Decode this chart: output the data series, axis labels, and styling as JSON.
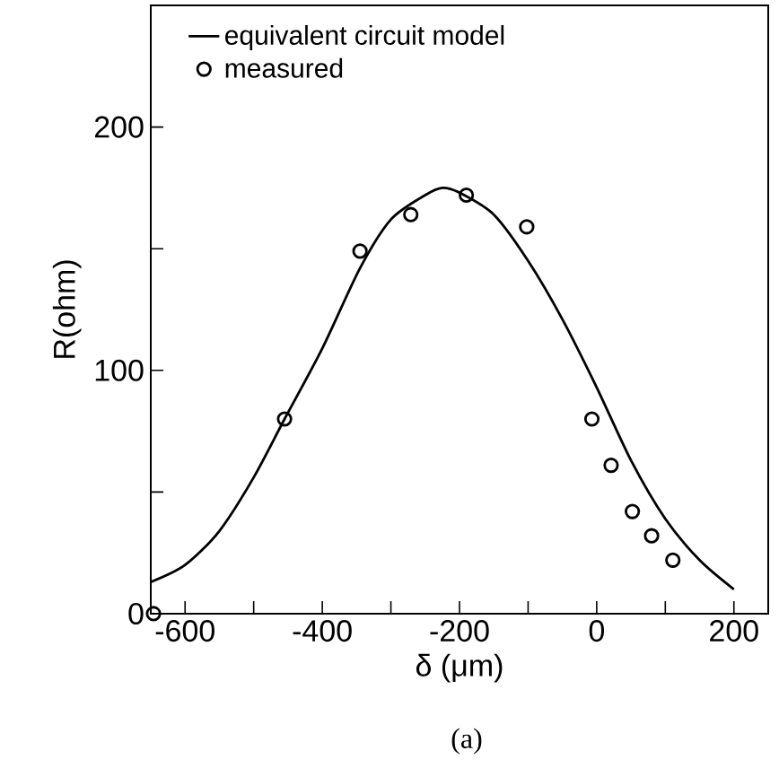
{
  "chart_data": {
    "type": "line",
    "xlabel": "δ (μm)",
    "ylabel": "R(ohm)",
    "xlim": [
      -650,
      250
    ],
    "ylim": [
      0,
      250
    ],
    "xticks": [
      -600,
      {
        "value": -500,
        "label": null
      },
      -400,
      {
        "value": -300,
        "label": null
      },
      -200,
      {
        "value": -100,
        "label": null
      },
      0,
      {
        "value": 100,
        "label": null
      },
      200
    ],
    "yticks": [
      0,
      {
        "value": 50,
        "label": null
      },
      100,
      {
        "value": 150,
        "label": null
      },
      200
    ],
    "legend": "top left",
    "grid": false,
    "annotations": [
      "(a)"
    ],
    "series": [
      {
        "name": "equivalent circuit model",
        "color": "#000000",
        "marker": "none",
        "line_style": "solid",
        "x": [
          -650,
          -600,
          -550,
          -500,
          -455,
          -400,
          -345,
          -300,
          -250,
          -225,
          -200,
          -150,
          -100,
          -50,
          0,
          50,
          100,
          150,
          200
        ],
        "values": [
          13,
          20,
          34,
          56,
          80,
          109,
          142,
          162,
          172,
          175,
          173,
          164,
          145,
          121,
          93,
          63,
          39,
          22,
          10
        ]
      },
      {
        "name": "measured",
        "type": "scatter",
        "color": "#000000",
        "marker": "circle",
        "x": [
          -646,
          -455,
          -345,
          -271,
          -190,
          -102,
          -7,
          21,
          52,
          80,
          111
        ],
        "values": [
          0,
          80,
          149,
          164,
          172,
          159,
          80,
          61,
          42,
          32,
          22
        ]
      }
    ]
  }
}
